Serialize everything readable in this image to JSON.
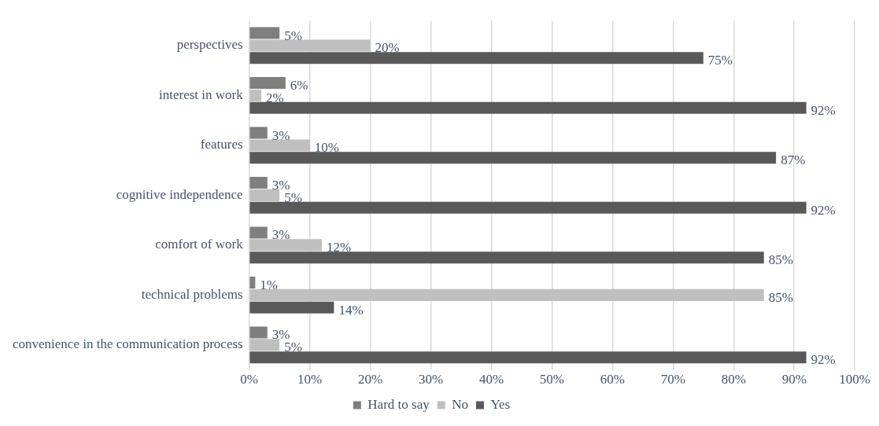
{
  "chart_data": {
    "type": "bar",
    "orientation": "horizontal",
    "categories": [
      "perspectives",
      "interest in work",
      "features",
      "cognitive independence",
      "comfort of work",
      "technical problems",
      "convenience in the communication process"
    ],
    "series": [
      {
        "name": "Hard to say",
        "color": "#7f7f7f",
        "values": [
          5,
          6,
          3,
          3,
          3,
          1,
          3
        ],
        "value_labels": [
          "5%",
          "6%",
          "3%",
          "3%",
          "3%",
          "1%",
          "3%"
        ]
      },
      {
        "name": "No",
        "color": "#bfbfbf",
        "values": [
          20,
          2,
          10,
          5,
          12,
          85,
          5
        ],
        "value_labels": [
          "20%",
          "2%",
          "10%",
          "5%",
          "12%",
          "85%",
          "5%"
        ]
      },
      {
        "name": "Yes",
        "color": "#595959",
        "values": [
          75,
          92,
          87,
          92,
          85,
          14,
          92
        ],
        "value_labels": [
          "75%",
          "92%",
          "87%",
          "92%",
          "85%",
          "14%",
          "92%"
        ]
      }
    ],
    "xlim": [
      0,
      100
    ],
    "xticks": [
      {
        "value": 0,
        "label": "0%"
      },
      {
        "value": 10,
        "label": "10%"
      },
      {
        "value": 20,
        "label": "20%"
      },
      {
        "value": 30,
        "label": "30%"
      },
      {
        "value": 40,
        "label": "40%"
      },
      {
        "value": 50,
        "label": "50%"
      },
      {
        "value": 60,
        "label": "60%"
      },
      {
        "value": 70,
        "label": "70%"
      },
      {
        "value": 80,
        "label": "80%"
      },
      {
        "value": 90,
        "label": "90%"
      },
      {
        "value": 100,
        "label": "100%"
      }
    ],
    "grid": "x",
    "legend": "bottom"
  }
}
